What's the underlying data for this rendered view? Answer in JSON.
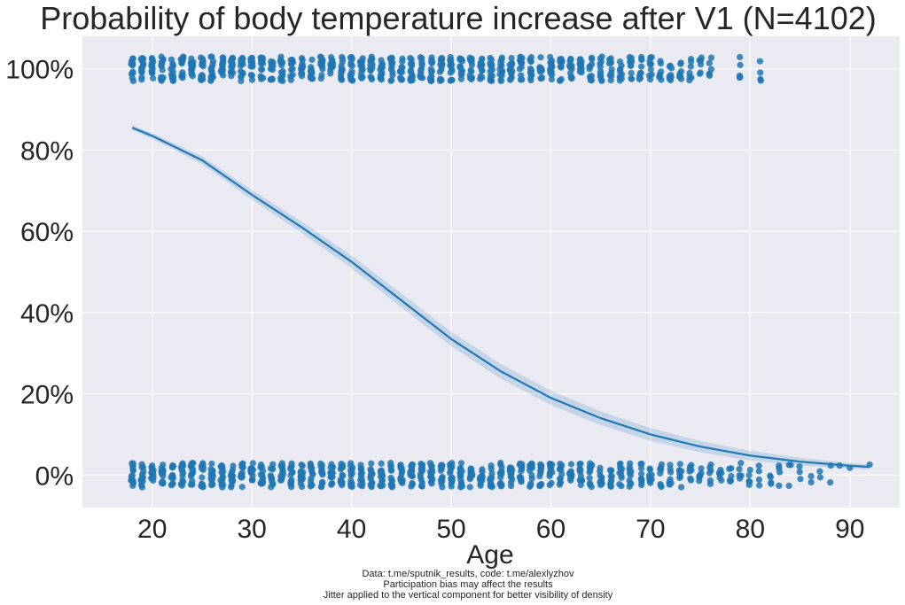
{
  "chart_data": {
    "type": "scatter",
    "title": "Probability of body temperature increase after V1 (N=4102)",
    "xlabel": "Age",
    "ylabel": "",
    "xlim": [
      13,
      95
    ],
    "ylim": [
      -0.08,
      1.08
    ],
    "x_ticks": [
      20,
      30,
      40,
      50,
      60,
      70,
      80,
      90
    ],
    "x_tick_labels": [
      "20",
      "30",
      "40",
      "50",
      "60",
      "70",
      "80",
      "90"
    ],
    "y_ticks": [
      0,
      0.2,
      0.4,
      0.6,
      0.8,
      1.0
    ],
    "y_tick_labels": [
      "0%",
      "20%",
      "40%",
      "60%",
      "80%",
      "100%"
    ],
    "grid": true,
    "colors": {
      "points": "#1f77b4",
      "line": "#1f77b4",
      "band": "#1f77b4",
      "background": "#eaeaf2",
      "grid": "#ffffff"
    },
    "scatter_outcome_1_ages": [
      18,
      19,
      20,
      21,
      22,
      23,
      24,
      25,
      26,
      27,
      28,
      29,
      30,
      31,
      32,
      33,
      34,
      35,
      36,
      37,
      38,
      39,
      40,
      41,
      42,
      43,
      44,
      45,
      46,
      47,
      48,
      49,
      50,
      51,
      52,
      53,
      54,
      55,
      56,
      57,
      58,
      59,
      60,
      61,
      62,
      63,
      64,
      65,
      66,
      67,
      68,
      69,
      70,
      71,
      72,
      73,
      74,
      75,
      76,
      79,
      81
    ],
    "scatter_outcome_0_ages": [
      18,
      19,
      20,
      21,
      22,
      23,
      24,
      25,
      26,
      27,
      28,
      29,
      30,
      31,
      32,
      33,
      34,
      35,
      36,
      37,
      38,
      39,
      40,
      41,
      42,
      43,
      44,
      45,
      46,
      47,
      48,
      49,
      50,
      51,
      52,
      53,
      54,
      55,
      56,
      57,
      58,
      59,
      60,
      61,
      62,
      63,
      64,
      65,
      66,
      67,
      68,
      69,
      70,
      71,
      72,
      73,
      74,
      75,
      76,
      77,
      78,
      79,
      80,
      81,
      82,
      83,
      84,
      85,
      86,
      87,
      88,
      89,
      90,
      92
    ],
    "logistic_fit": {
      "x": [
        18,
        20,
        25,
        30,
        35,
        40,
        45,
        50,
        55,
        60,
        65,
        70,
        75,
        80,
        85,
        90,
        92
      ],
      "y": [
        0.855,
        0.835,
        0.775,
        0.69,
        0.61,
        0.525,
        0.43,
        0.335,
        0.255,
        0.19,
        0.14,
        0.1,
        0.07,
        0.048,
        0.033,
        0.023,
        0.02
      ]
    },
    "jitter": 0.03
  },
  "footnotes": {
    "line1": "Data: t.me/sputnik_results, code: t.me/alexlyzhov",
    "line2": "Participation bias may affect the results",
    "line3": "Jitter applied to the vertical component for better visibility of density"
  }
}
